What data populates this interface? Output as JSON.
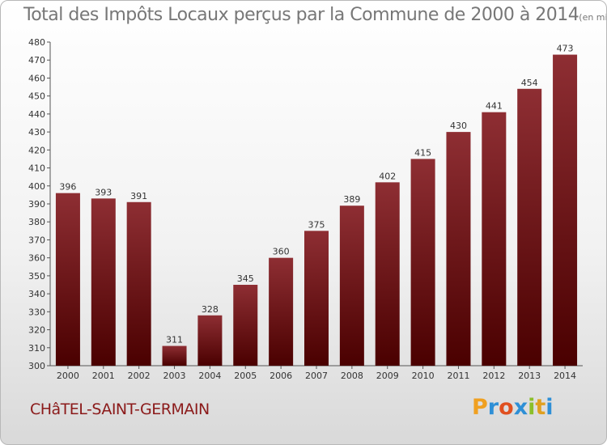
{
  "chart_data": {
    "type": "bar",
    "title": "Total des Impôts Locaux perçus par la Commune de 2000 à 2014",
    "unit": "(en milliers d'€)",
    "categories": [
      "2000",
      "2001",
      "2002",
      "2003",
      "2004",
      "2005",
      "2006",
      "2007",
      "2008",
      "2009",
      "2010",
      "2011",
      "2012",
      "2013",
      "2014"
    ],
    "values": [
      396,
      393,
      391,
      311,
      328,
      345,
      360,
      375,
      389,
      402,
      415,
      430,
      441,
      454,
      473
    ],
    "ylim": [
      300,
      480
    ],
    "yticks": [
      300,
      310,
      320,
      330,
      340,
      350,
      360,
      370,
      380,
      390,
      400,
      410,
      420,
      430,
      440,
      450,
      460,
      470,
      480
    ],
    "grid": false,
    "bar_color": "#7a1a1e"
  },
  "commune": "CHâTEL-SAINT-GERMAIN",
  "logo": {
    "letters": [
      "P",
      "r",
      "o",
      "x",
      "i",
      "t",
      "i"
    ],
    "colors": [
      "#f0a020",
      "#2e8fd6",
      "#e05020",
      "#2e8fd6",
      "#8bbf2a",
      "#e0a020",
      "#2e8fd6"
    ]
  }
}
